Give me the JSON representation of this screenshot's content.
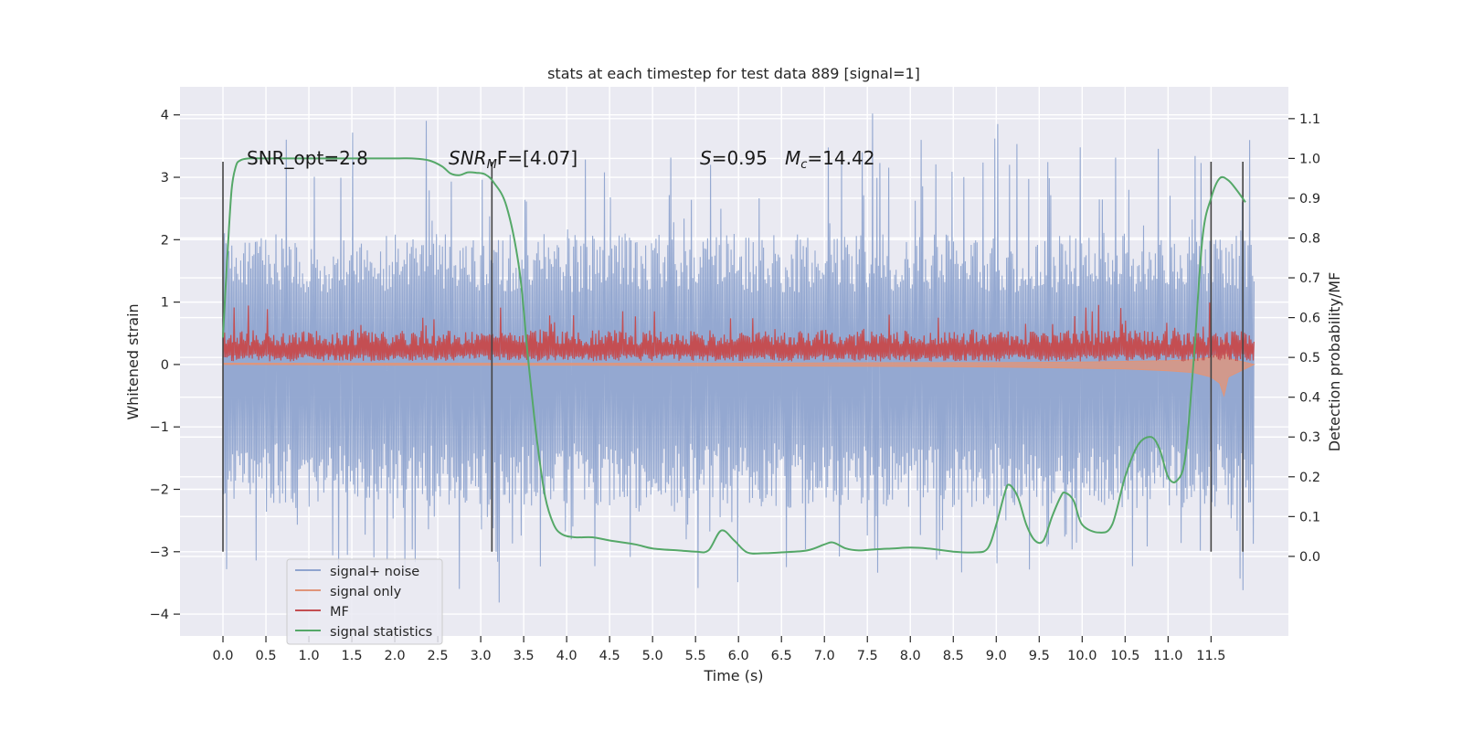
{
  "chart_data": {
    "type": "line",
    "title": "stats at each timestep for test data 889 [signal=1]",
    "xlabel": "Time (s)",
    "ylabel": "Whitened strain",
    "y2label": "Detection probability/MF",
    "xlim": [
      -0.5,
      12.4
    ],
    "ylim": [
      -4.35,
      4.45
    ],
    "y2lim": [
      -0.2,
      1.18
    ],
    "x_ticks": [
      "0.0",
      "0.5",
      "1.0",
      "1.5",
      "2.0",
      "2.5",
      "3.0",
      "3.5",
      "4.0",
      "4.5",
      "5.0",
      "5.5",
      "6.0",
      "6.5",
      "7.0",
      "7.5",
      "8.0",
      "8.5",
      "9.0",
      "9.5",
      "10.0",
      "10.5",
      "11.0",
      "11.5"
    ],
    "y_ticks": [
      "4",
      "3",
      "2",
      "1",
      "0",
      "−1",
      "−2",
      "−3",
      "−4"
    ],
    "y2_ticks": [
      "1.1",
      "1.0",
      "0.9",
      "0.8",
      "0.7",
      "0.6",
      "0.5",
      "0.4",
      "0.3",
      "0.2",
      "0.1",
      "0.0"
    ],
    "grid": true,
    "legend_position": "lower-left",
    "annotations": {
      "snr_opt": "SNR_opt=2.8",
      "snr_mf_sym": "SNR",
      "snr_mf_sub": "M",
      "snr_mf_val": "F=[4.07]",
      "s_sym": "S",
      "s_val": "=0.95",
      "mc_sym": "M",
      "mc_sub": "c",
      "mc_val": "=14.42"
    },
    "vertical_markers": [
      0.0,
      3.13,
      11.5,
      11.87
    ],
    "series": [
      {
        "name": "signal+ noise",
        "color": "#8fa4cf",
        "envelope": {
          "x": [
            0.0,
            12.0
          ],
          "typical_upper": 2.1,
          "typical_lower": -2.3,
          "peak_max": 4.1,
          "peak_min": -3.85
        }
      },
      {
        "name": "signal only",
        "color": "#e0957a",
        "x": [
          0.0,
          2.0,
          4.0,
          6.0,
          8.0,
          9.0,
          10.0,
          10.5,
          11.0,
          11.3,
          11.5,
          11.6,
          11.65,
          11.7,
          12.0
        ],
        "lower": [
          0.0,
          -0.01,
          -0.01,
          -0.02,
          -0.03,
          -0.04,
          -0.06,
          -0.07,
          -0.1,
          -0.13,
          -0.2,
          -0.3,
          -0.5,
          -0.2,
          0.0
        ],
        "upper": [
          0.02,
          0.02,
          0.02,
          0.02,
          0.03,
          0.03,
          0.04,
          0.05,
          0.06,
          0.08,
          0.12,
          0.2,
          0.35,
          0.1,
          0.0
        ]
      },
      {
        "name": "MF",
        "color": "#c44e52",
        "band": {
          "x": [
            0.0,
            12.0
          ],
          "lower": 0.05,
          "upper": 0.55,
          "peak_max": 1.0
        }
      },
      {
        "name": "signal statistics",
        "color": "#55a868",
        "axis": "right",
        "x": [
          0.0,
          0.05,
          0.1,
          0.15,
          0.2,
          0.3,
          0.5,
          1.0,
          1.5,
          2.0,
          2.2,
          2.4,
          2.55,
          2.65,
          2.75,
          2.85,
          2.95,
          3.05,
          3.15,
          3.3,
          3.45,
          3.55,
          3.65,
          3.75,
          3.85,
          3.95,
          4.1,
          4.3,
          4.5,
          4.8,
          5.0,
          5.3,
          5.5,
          5.65,
          5.8,
          5.95,
          6.1,
          6.3,
          6.5,
          6.8,
          7.0,
          7.1,
          7.25,
          7.4,
          7.6,
          7.8,
          8.0,
          8.2,
          8.5,
          8.75,
          8.9,
          9.0,
          9.1,
          9.15,
          9.25,
          9.35,
          9.45,
          9.55,
          9.65,
          9.75,
          9.8,
          9.9,
          10.0,
          10.2,
          10.35,
          10.5,
          10.65,
          10.8,
          10.9,
          11.0,
          11.1,
          11.2,
          11.3,
          11.4,
          11.5,
          11.6,
          11.7,
          11.8,
          11.9
        ],
        "values": [
          0.55,
          0.75,
          0.92,
          0.98,
          0.995,
          1.0,
          1.0,
          1.0,
          1.0,
          1.0,
          1.0,
          0.995,
          0.98,
          0.962,
          0.958,
          0.965,
          0.964,
          0.96,
          0.94,
          0.88,
          0.72,
          0.5,
          0.3,
          0.15,
          0.08,
          0.055,
          0.048,
          0.048,
          0.04,
          0.03,
          0.02,
          0.015,
          0.012,
          0.015,
          0.065,
          0.04,
          0.01,
          0.008,
          0.01,
          0.015,
          0.03,
          0.035,
          0.02,
          0.015,
          0.018,
          0.02,
          0.022,
          0.02,
          0.012,
          0.01,
          0.02,
          0.08,
          0.16,
          0.18,
          0.15,
          0.08,
          0.04,
          0.04,
          0.1,
          0.15,
          0.16,
          0.14,
          0.08,
          0.06,
          0.08,
          0.2,
          0.28,
          0.3,
          0.27,
          0.2,
          0.19,
          0.25,
          0.5,
          0.8,
          0.9,
          0.95,
          0.945,
          0.92,
          0.89
        ]
      }
    ]
  }
}
